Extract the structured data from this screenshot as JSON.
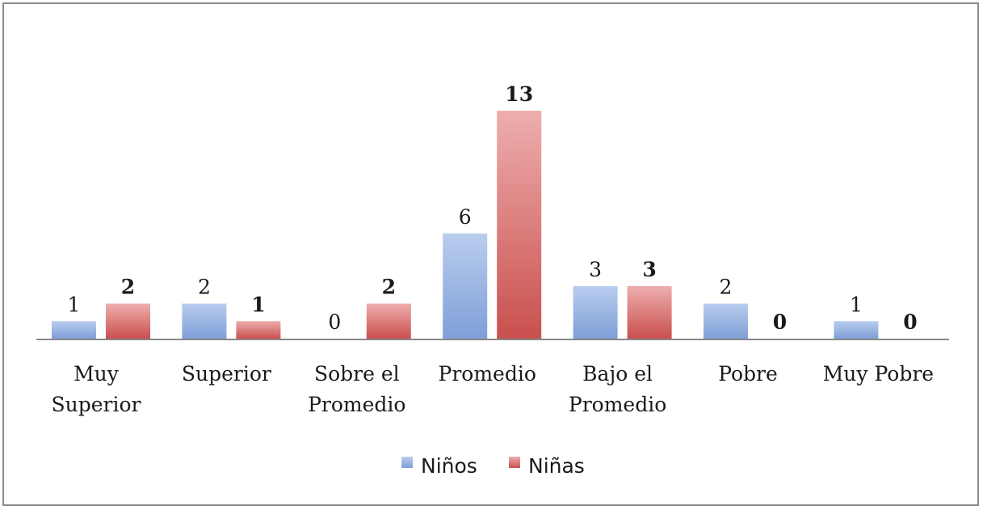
{
  "chart_data": {
    "type": "bar",
    "categories": [
      [
        "Muy",
        "Superior"
      ],
      [
        "Superior"
      ],
      [
        "Sobre el",
        "Promedio"
      ],
      [
        "Promedio"
      ],
      [
        "Bajo el",
        "Promedio"
      ],
      [
        "Pobre"
      ],
      [
        "Muy Pobre"
      ]
    ],
    "series": [
      {
        "name": "Niños",
        "values": [
          1,
          2,
          0,
          6,
          3,
          2,
          1
        ],
        "color": "#7f9fd8",
        "color_light": "#b9cdee",
        "label_bold": false
      },
      {
        "name": "Niñas",
        "values": [
          2,
          1,
          2,
          13,
          3,
          0,
          0
        ],
        "color": "#c9504e",
        "color_light": "#eeaeae",
        "label_bold": true
      }
    ],
    "ylim": [
      0,
      13
    ],
    "grid": false,
    "legend": "bottom",
    "title": "",
    "xlabel": "",
    "ylabel": ""
  }
}
